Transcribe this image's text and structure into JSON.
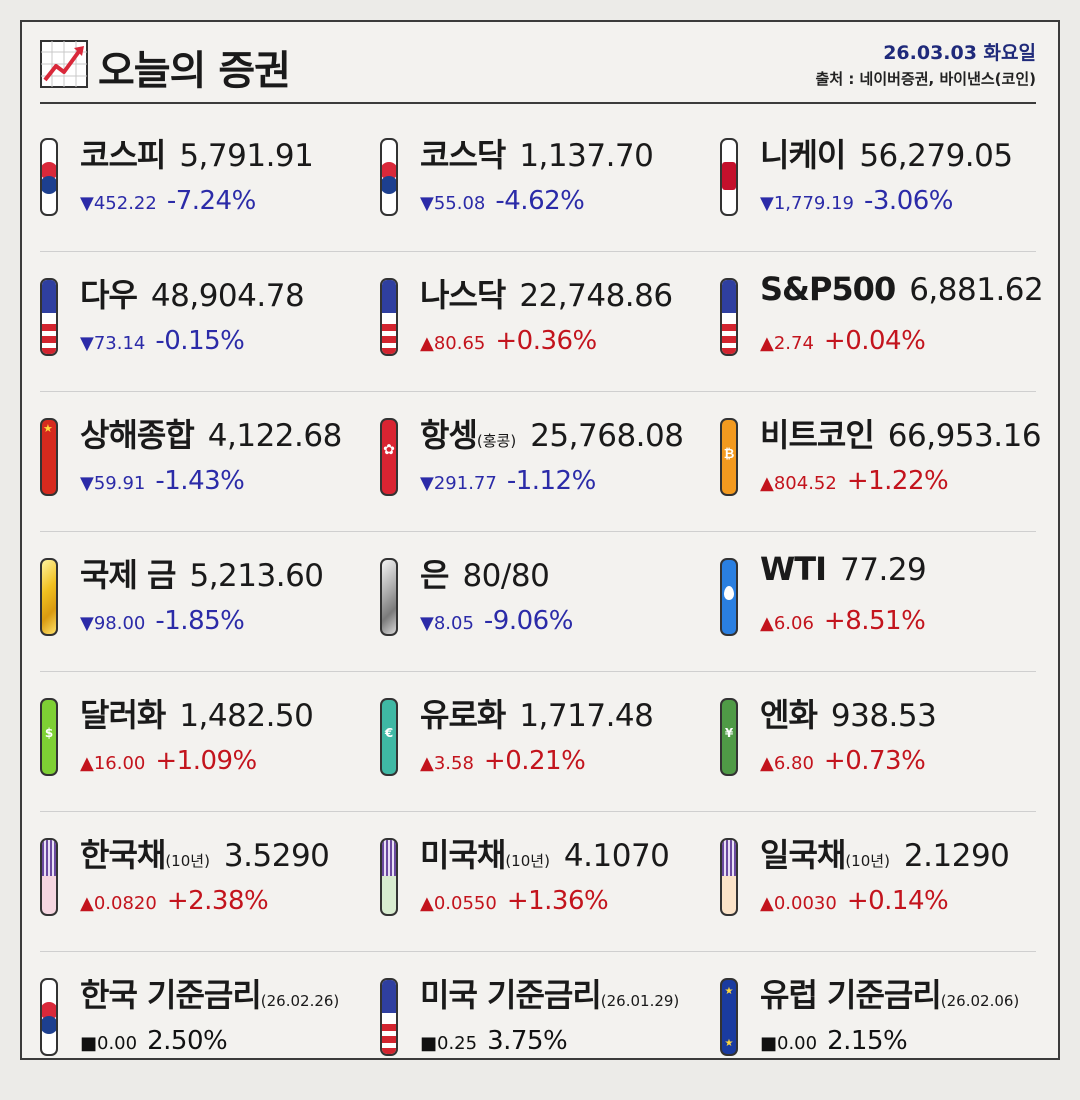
{
  "header": {
    "title": "오늘의 증권",
    "date": "26.03.03 화요일",
    "source": "출처 : 네이버증권, 바이낸스(코인)"
  },
  "colors": {
    "up": "#c3141d",
    "down": "#2b2ba8",
    "flat": "#111111"
  },
  "rows": [
    [
      {
        "name": "코스피",
        "sub": "",
        "value": "5,791.91",
        "abs": "▼452.22",
        "pct": "-7.24%",
        "dir": "down",
        "flag": "kr"
      },
      {
        "name": "코스닥",
        "sub": "",
        "value": "1,137.70",
        "abs": "▼55.08",
        "pct": "-4.62%",
        "dir": "down",
        "flag": "kr"
      },
      {
        "name": "니케이",
        "sub": "",
        "value": "56,279.05",
        "abs": "▼1,779.19",
        "pct": "-3.06%",
        "dir": "down",
        "flag": "jp"
      }
    ],
    [
      {
        "name": "다우",
        "sub": "",
        "value": "48,904.78",
        "abs": "▼73.14",
        "pct": "-0.15%",
        "dir": "down",
        "flag": "us"
      },
      {
        "name": "나스닥",
        "sub": "",
        "value": "22,748.86",
        "abs": "▲80.65",
        "pct": "+0.36%",
        "dir": "up",
        "flag": "us"
      },
      {
        "name": "S&P500",
        "sub": "",
        "value": "6,881.62",
        "abs": "▲2.74",
        "pct": "+0.04%",
        "dir": "up",
        "flag": "us"
      }
    ],
    [
      {
        "name": "상해종합",
        "sub": "",
        "value": "4,122.68",
        "abs": "▼59.91",
        "pct": "-1.43%",
        "dir": "down",
        "flag": "cn"
      },
      {
        "name": "항셍",
        "sub": "(홍콩)",
        "value": "25,768.08",
        "abs": "▼291.77",
        "pct": "-1.12%",
        "dir": "down",
        "flag": "hk"
      },
      {
        "name": "비트코인",
        "sub": "",
        "value": "66,953.16",
        "abs": "▲804.52",
        "pct": "+1.22%",
        "dir": "up",
        "flag": "btc"
      }
    ],
    [
      {
        "name": "국제 금",
        "sub": "",
        "value": "5,213.60",
        "abs": "▼98.00",
        "pct": "-1.85%",
        "dir": "down",
        "flag": "gold"
      },
      {
        "name": "은",
        "sub": "",
        "value": "80/80",
        "abs": "▼8.05",
        "pct": "-9.06%",
        "dir": "down",
        "flag": "silver"
      },
      {
        "name": "WTI",
        "sub": "",
        "value": "77.29",
        "abs": "▲6.06",
        "pct": "+8.51%",
        "dir": "up",
        "flag": "oil"
      }
    ],
    [
      {
        "name": "달러화",
        "sub": "",
        "value": "1,482.50",
        "abs": "▲16.00",
        "pct": "+1.09%",
        "dir": "up",
        "flag": "usd"
      },
      {
        "name": "유로화",
        "sub": "",
        "value": "1,717.48",
        "abs": "▲3.58",
        "pct": "+0.21%",
        "dir": "up",
        "flag": "eur"
      },
      {
        "name": "엔화",
        "sub": "",
        "value": "938.53",
        "abs": "▲6.80",
        "pct": "+0.73%",
        "dir": "up",
        "flag": "jpy"
      }
    ],
    [
      {
        "name": "한국채",
        "sub": "(10년)",
        "value": "3.5290",
        "abs": "▲0.0820",
        "pct": "+2.38%",
        "dir": "up",
        "flag": "bond-kr"
      },
      {
        "name": "미국채",
        "sub": "(10년)",
        "value": "4.1070",
        "abs": "▲0.0550",
        "pct": "+1.36%",
        "dir": "up",
        "flag": "bond-us"
      },
      {
        "name": "일국채",
        "sub": "(10년)",
        "value": "2.1290",
        "abs": "▲0.0030",
        "pct": "+0.14%",
        "dir": "up",
        "flag": "bond-jp"
      }
    ],
    [
      {
        "name": "한국 기준금리",
        "sub": "(26.02.26)",
        "value": "",
        "abs": "■0.00",
        "pct": "2.50%",
        "dir": "flat",
        "flag": "kr"
      },
      {
        "name": "미국 기준금리",
        "sub": "(26.01.29)",
        "value": "",
        "abs": "■0.25",
        "pct": "3.75%",
        "dir": "flat",
        "flag": "us"
      },
      {
        "name": "유럽 기준금리",
        "sub": "(26.02.06)",
        "value": "",
        "abs": "■0.00",
        "pct": "2.15%",
        "dir": "flat",
        "flag": "eu"
      }
    ]
  ]
}
